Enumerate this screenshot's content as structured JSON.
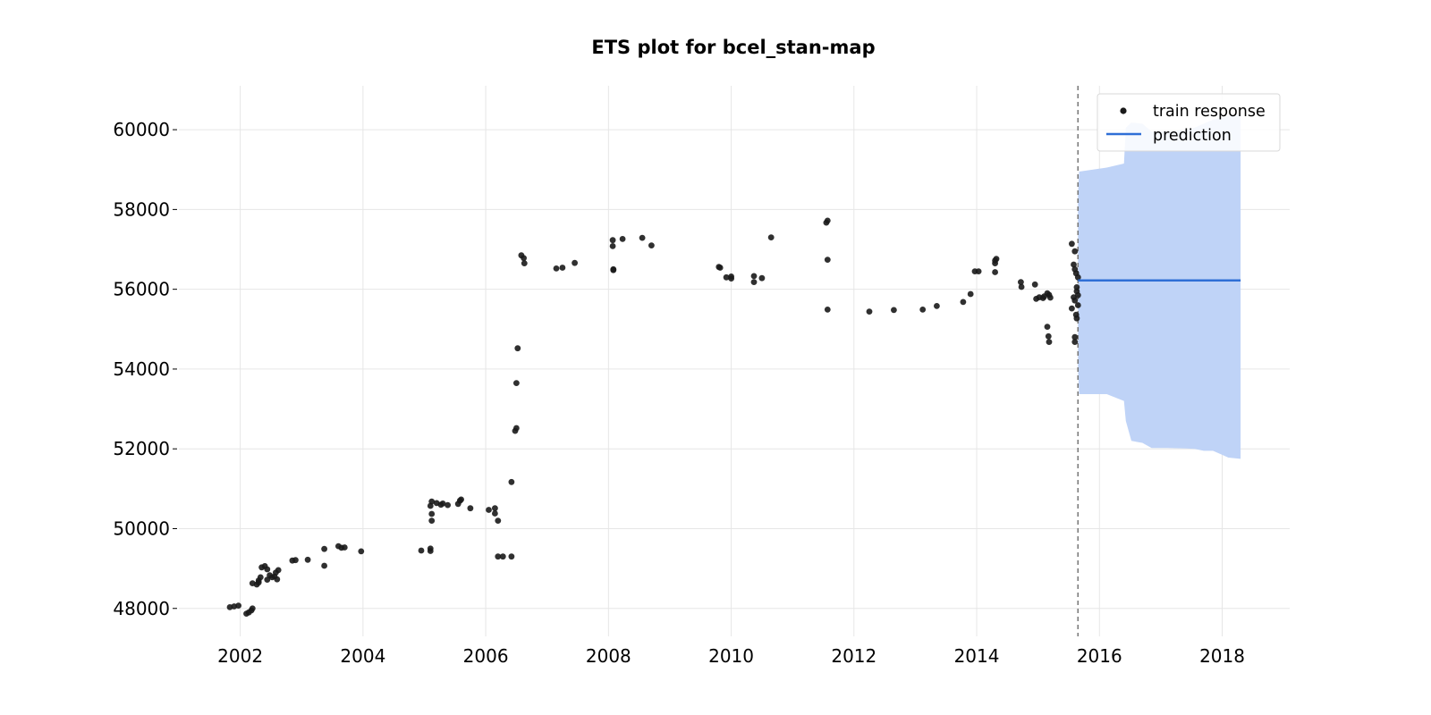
{
  "chart_data": {
    "type": "scatter",
    "title": "ETS plot for bcel_stan-map",
    "xlabel": "",
    "ylabel": "",
    "x_ticks": [
      2002,
      2004,
      2006,
      2008,
      2010,
      2012,
      2014,
      2016,
      2018
    ],
    "y_ticks": [
      48000,
      50000,
      52000,
      54000,
      56000,
      58000,
      60000
    ],
    "x_tick_labels": [
      "2002",
      "2004",
      "2006",
      "2008",
      "2010",
      "2012",
      "2014",
      "2016",
      "2018"
    ],
    "y_tick_labels": [
      "48000",
      "50000",
      "52000",
      "54000",
      "56000",
      "58000",
      "60000"
    ],
    "xlim": [
      2001.0,
      2019.1
    ],
    "ylim": [
      47300,
      61100
    ],
    "grid": true,
    "legend_position": "top-right",
    "colors": {
      "train_points": "#1a1a1a",
      "prediction_line": "#2f6fd6",
      "interval_fill": "#bfd3f7",
      "cutoff_line": "#777777"
    },
    "train_cutoff_x": 2015.65,
    "series": [
      {
        "name": "train response",
        "kind": "scatter",
        "points": [
          [
            2001.83,
            48030
          ],
          [
            2001.9,
            48050
          ],
          [
            2001.97,
            48070
          ],
          [
            2002.1,
            47870
          ],
          [
            2002.14,
            47900
          ],
          [
            2002.18,
            47950
          ],
          [
            2002.2,
            48000
          ],
          [
            2002.2,
            48630
          ],
          [
            2002.27,
            48600
          ],
          [
            2002.3,
            48650
          ],
          [
            2002.33,
            48780
          ],
          [
            2002.3,
            48700
          ],
          [
            2002.35,
            49030
          ],
          [
            2002.4,
            49060
          ],
          [
            2002.44,
            48980
          ],
          [
            2002.44,
            48720
          ],
          [
            2002.48,
            48830
          ],
          [
            2002.52,
            48780
          ],
          [
            2002.56,
            48800
          ],
          [
            2002.6,
            48730
          ],
          [
            2002.58,
            48900
          ],
          [
            2002.62,
            48960
          ],
          [
            2002.85,
            49200
          ],
          [
            2002.9,
            49210
          ],
          [
            2003.1,
            49220
          ],
          [
            2003.37,
            49070
          ],
          [
            2003.37,
            49490
          ],
          [
            2003.6,
            49560
          ],
          [
            2003.65,
            49520
          ],
          [
            2003.7,
            49530
          ],
          [
            2003.97,
            49430
          ],
          [
            2004.95,
            49450
          ],
          [
            2005.1,
            49440
          ],
          [
            2005.1,
            49500
          ],
          [
            2005.12,
            50200
          ],
          [
            2005.12,
            50370
          ],
          [
            2005.1,
            50570
          ],
          [
            2005.12,
            50680
          ],
          [
            2005.2,
            50640
          ],
          [
            2005.27,
            50600
          ],
          [
            2005.3,
            50630
          ],
          [
            2005.38,
            50590
          ],
          [
            2005.55,
            50620
          ],
          [
            2005.58,
            50700
          ],
          [
            2005.6,
            50730
          ],
          [
            2005.75,
            50510
          ],
          [
            2006.05,
            50470
          ],
          [
            2006.15,
            50510
          ],
          [
            2006.15,
            50380
          ],
          [
            2006.2,
            50200
          ],
          [
            2006.2,
            49300
          ],
          [
            2006.28,
            49300
          ],
          [
            2006.42,
            49300
          ],
          [
            2006.42,
            51170
          ],
          [
            2006.48,
            52450
          ],
          [
            2006.5,
            52520
          ],
          [
            2006.5,
            53650
          ],
          [
            2006.52,
            54520
          ],
          [
            2006.58,
            56850
          ],
          [
            2006.62,
            56780
          ],
          [
            2006.63,
            56650
          ],
          [
            2007.15,
            56520
          ],
          [
            2007.25,
            56540
          ],
          [
            2007.45,
            56660
          ],
          [
            2008.08,
            56480
          ],
          [
            2008.08,
            56500
          ],
          [
            2008.07,
            57080
          ],
          [
            2008.07,
            57230
          ],
          [
            2008.23,
            57260
          ],
          [
            2008.55,
            57290
          ],
          [
            2008.7,
            57100
          ],
          [
            2009.8,
            56560
          ],
          [
            2009.82,
            56540
          ],
          [
            2009.92,
            56300
          ],
          [
            2010.0,
            56270
          ],
          [
            2010.0,
            56320
          ],
          [
            2010.37,
            56180
          ],
          [
            2010.37,
            56330
          ],
          [
            2010.5,
            56280
          ],
          [
            2010.65,
            57300
          ],
          [
            2011.55,
            57670
          ],
          [
            2011.57,
            57720
          ],
          [
            2011.57,
            56740
          ],
          [
            2011.57,
            55490
          ],
          [
            2012.25,
            55440
          ],
          [
            2012.65,
            55480
          ],
          [
            2013.12,
            55490
          ],
          [
            2013.35,
            55580
          ],
          [
            2013.78,
            55680
          ],
          [
            2013.9,
            55880
          ],
          [
            2013.97,
            56450
          ],
          [
            2014.03,
            56450
          ],
          [
            2014.3,
            56650
          ],
          [
            2014.3,
            56720
          ],
          [
            2014.32,
            56760
          ],
          [
            2014.3,
            56430
          ],
          [
            2014.72,
            56180
          ],
          [
            2014.73,
            56060
          ],
          [
            2014.95,
            56120
          ],
          [
            2014.97,
            55760
          ],
          [
            2015.02,
            55800
          ],
          [
            2015.08,
            55780
          ],
          [
            2015.1,
            55820
          ],
          [
            2015.15,
            55900
          ],
          [
            2015.18,
            55860
          ],
          [
            2015.2,
            55790
          ],
          [
            2015.15,
            55060
          ],
          [
            2015.17,
            54820
          ],
          [
            2015.18,
            54680
          ],
          [
            2015.55,
            57140
          ],
          [
            2015.6,
            56950
          ],
          [
            2015.58,
            56620
          ],
          [
            2015.6,
            56500
          ],
          [
            2015.62,
            56400
          ],
          [
            2015.58,
            55800
          ],
          [
            2015.55,
            55520
          ],
          [
            2015.6,
            55720
          ],
          [
            2015.62,
            55360
          ],
          [
            2015.63,
            55270
          ],
          [
            2015.6,
            54800
          ],
          [
            2015.6,
            54680
          ],
          [
            2015.65,
            56300
          ],
          [
            2015.63,
            56050
          ],
          [
            2015.65,
            55850
          ],
          [
            2015.65,
            55600
          ],
          [
            2015.63,
            55950
          ]
        ]
      },
      {
        "name": "prediction",
        "kind": "line",
        "points": [
          [
            2015.65,
            56220
          ],
          [
            2018.3,
            56220
          ]
        ]
      }
    ],
    "prediction_interval": [
      [
        2015.65,
        54000,
        58400
      ],
      [
        2015.67,
        53370,
        58950
      ],
      [
        2016.12,
        53370,
        59050
      ],
      [
        2016.4,
        53200,
        59150
      ],
      [
        2016.43,
        52700,
        60050
      ],
      [
        2016.52,
        52200,
        60180
      ],
      [
        2016.7,
        52150,
        60150
      ],
      [
        2016.85,
        52020,
        59950
      ],
      [
        2017.1,
        52020,
        59950
      ],
      [
        2017.4,
        52010,
        60000
      ],
      [
        2017.55,
        52000,
        60050
      ],
      [
        2017.7,
        51950,
        60150
      ],
      [
        2017.85,
        51950,
        60250
      ],
      [
        2018.0,
        51850,
        60300
      ],
      [
        2018.1,
        51780,
        60350
      ],
      [
        2018.3,
        51750,
        60380
      ]
    ]
  }
}
